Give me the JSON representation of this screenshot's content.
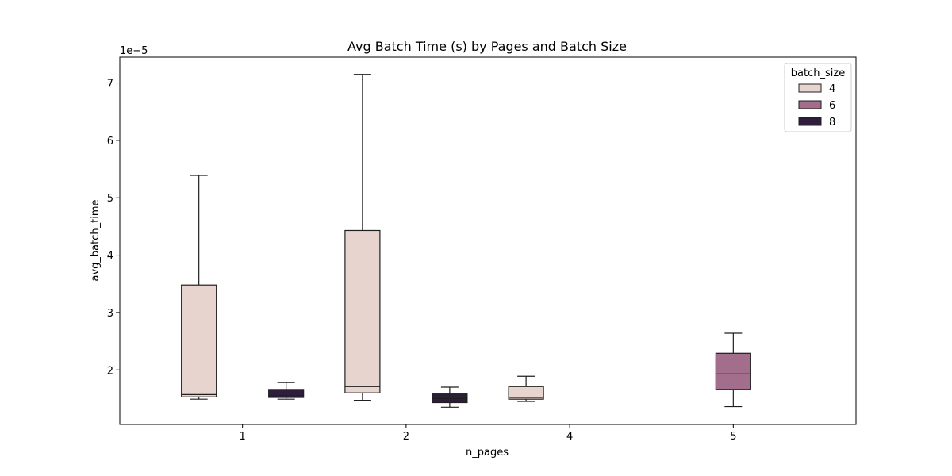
{
  "chart_data": {
    "type": "box",
    "title": "Avg Batch Time (s) by Pages and Batch Size",
    "xlabel": "n_pages",
    "ylabel": "avg_batch_time",
    "y_offset_label": "1e−5",
    "y_scale_factor": 1e-05,
    "categories": [
      "1",
      "2",
      "4",
      "5"
    ],
    "ylim": [
      1.05,
      7.45
    ],
    "yticks": [
      2,
      3,
      4,
      5,
      6,
      7
    ],
    "grid": false,
    "legend": {
      "title": "batch_size",
      "position": "top-right",
      "entries": [
        {
          "label": "4",
          "color": "#e8d4cf"
        },
        {
          "label": "6",
          "color": "#a36d8c"
        },
        {
          "label": "8",
          "color": "#2e1e3b"
        }
      ]
    },
    "hue_order": [
      "4",
      "6",
      "8"
    ],
    "boxes": [
      {
        "category": "1",
        "hue": "4",
        "whisker_low": 1.49,
        "q1": 1.53,
        "median": 1.57,
        "q3": 3.48,
        "whisker_high": 5.39
      },
      {
        "category": "1",
        "hue": "8",
        "whisker_low": 1.49,
        "q1": 1.52,
        "median": 1.55,
        "q3": 1.66,
        "whisker_high": 1.78
      },
      {
        "category": "2",
        "hue": "4",
        "whisker_low": 1.47,
        "q1": 1.6,
        "median": 1.71,
        "q3": 4.43,
        "whisker_high": 7.15
      },
      {
        "category": "2",
        "hue": "8",
        "whisker_low": 1.35,
        "q1": 1.43,
        "median": 1.5,
        "q3": 1.58,
        "whisker_high": 1.7
      },
      {
        "category": "4",
        "hue": "4",
        "whisker_low": 1.45,
        "q1": 1.49,
        "median": 1.52,
        "q3": 1.71,
        "whisker_high": 1.89
      },
      {
        "category": "5",
        "hue": "6",
        "whisker_low": 1.36,
        "q1": 1.66,
        "median": 1.93,
        "q3": 2.29,
        "whisker_high": 2.64
      }
    ]
  }
}
